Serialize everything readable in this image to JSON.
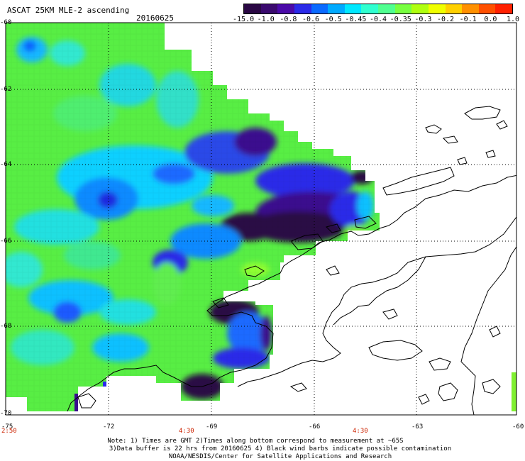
{
  "header": {
    "title": "ASCAT 25KM MLE-2 ascending",
    "date": "20160625"
  },
  "colorbar": {
    "labels": [
      "-15.0",
      "-1.0",
      "-0.8",
      "-0.6",
      "-0.5",
      "-0.45",
      "-0.4",
      "-0.35",
      "-0.3",
      "-0.2",
      "-0.1",
      "0.0",
      "1.0"
    ],
    "colors": [
      "#2a0844",
      "#3a0a6e",
      "#4a0aa8",
      "#2a2ae8",
      "#0a6aff",
      "#00aaff",
      "#00e8ff",
      "#30ffd0",
      "#50ff90",
      "#78ff40",
      "#b0ff10",
      "#f0ff00",
      "#ffd000",
      "#ff9000",
      "#ff5000",
      "#ff2000"
    ]
  },
  "axes": {
    "lat_labels": [
      "-60",
      "-62",
      "-64",
      "-66",
      "-68",
      "-70"
    ],
    "lon_labels": [
      "-75",
      "-72",
      "-69",
      "-66",
      "-63",
      "-60"
    ],
    "time_labels": [
      "2:50",
      "4:30",
      "4:30"
    ]
  },
  "notes": {
    "line1": "Note: 1) Times are GMT 2)Times along bottom correspond to measurement at ~65S",
    "line2": "3)Data buffer is 22 hrs from 20160625 4) Black wind barbs indicate possible contamination",
    "line3": "NOAA/NESDIS/Center for Satellite Applications and Research"
  }
}
